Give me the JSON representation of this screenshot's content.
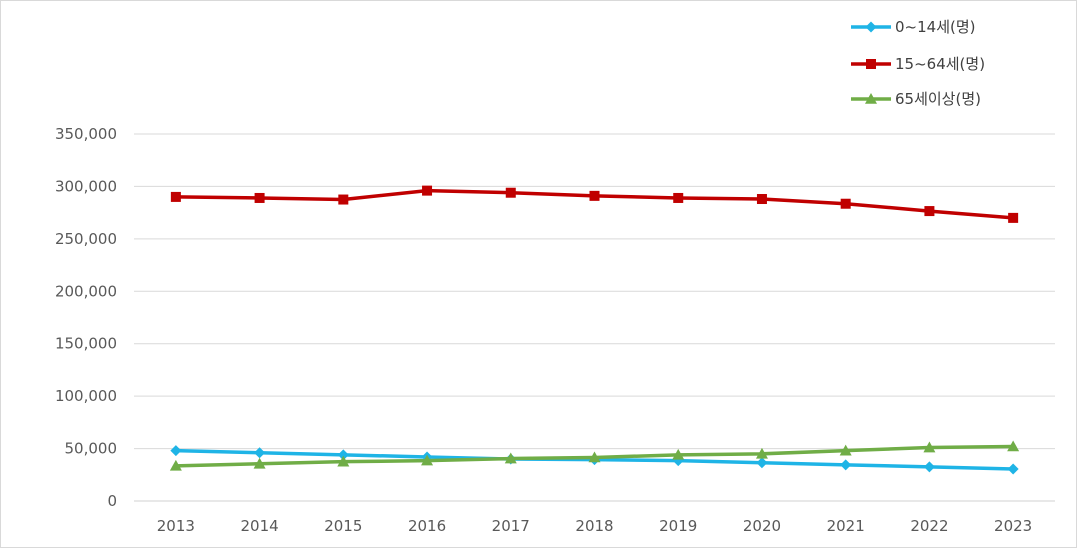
{
  "chart_data": {
    "type": "line",
    "title": "",
    "xlabel": "",
    "ylabel": "",
    "categories": [
      "2013",
      "2014",
      "2015",
      "2016",
      "2017",
      "2018",
      "2019",
      "2020",
      "2021",
      "2022",
      "2023"
    ],
    "ylim": [
      0,
      350000
    ],
    "yticks": [
      0,
      50000,
      100000,
      150000,
      200000,
      250000,
      300000,
      350000
    ],
    "ytick_labels": [
      "0",
      "50,000",
      "100,000",
      "150,000",
      "200,000",
      "250,000",
      "300,000",
      "350,000"
    ],
    "grid": true,
    "legend_position": "top-right",
    "series": [
      {
        "name": "0~14세(명)",
        "color": "#1fb4e6",
        "marker": "diamond",
        "values": [
          48000,
          46000,
          44000,
          42000,
          40000,
          39500,
          38500,
          36500,
          34500,
          32500,
          30500
        ]
      },
      {
        "name": "15~64세(명)",
        "color": "#c00000",
        "marker": "square",
        "values": [
          290000,
          289000,
          287500,
          296000,
          294000,
          291000,
          289000,
          288000,
          283500,
          276500,
          270000
        ]
      },
      {
        "name": "65세이상(명)",
        "color": "#70ad47",
        "marker": "triangle",
        "values": [
          33500,
          35500,
          37500,
          38500,
          40500,
          41500,
          44000,
          45000,
          48000,
          51000,
          52000
        ]
      }
    ]
  }
}
